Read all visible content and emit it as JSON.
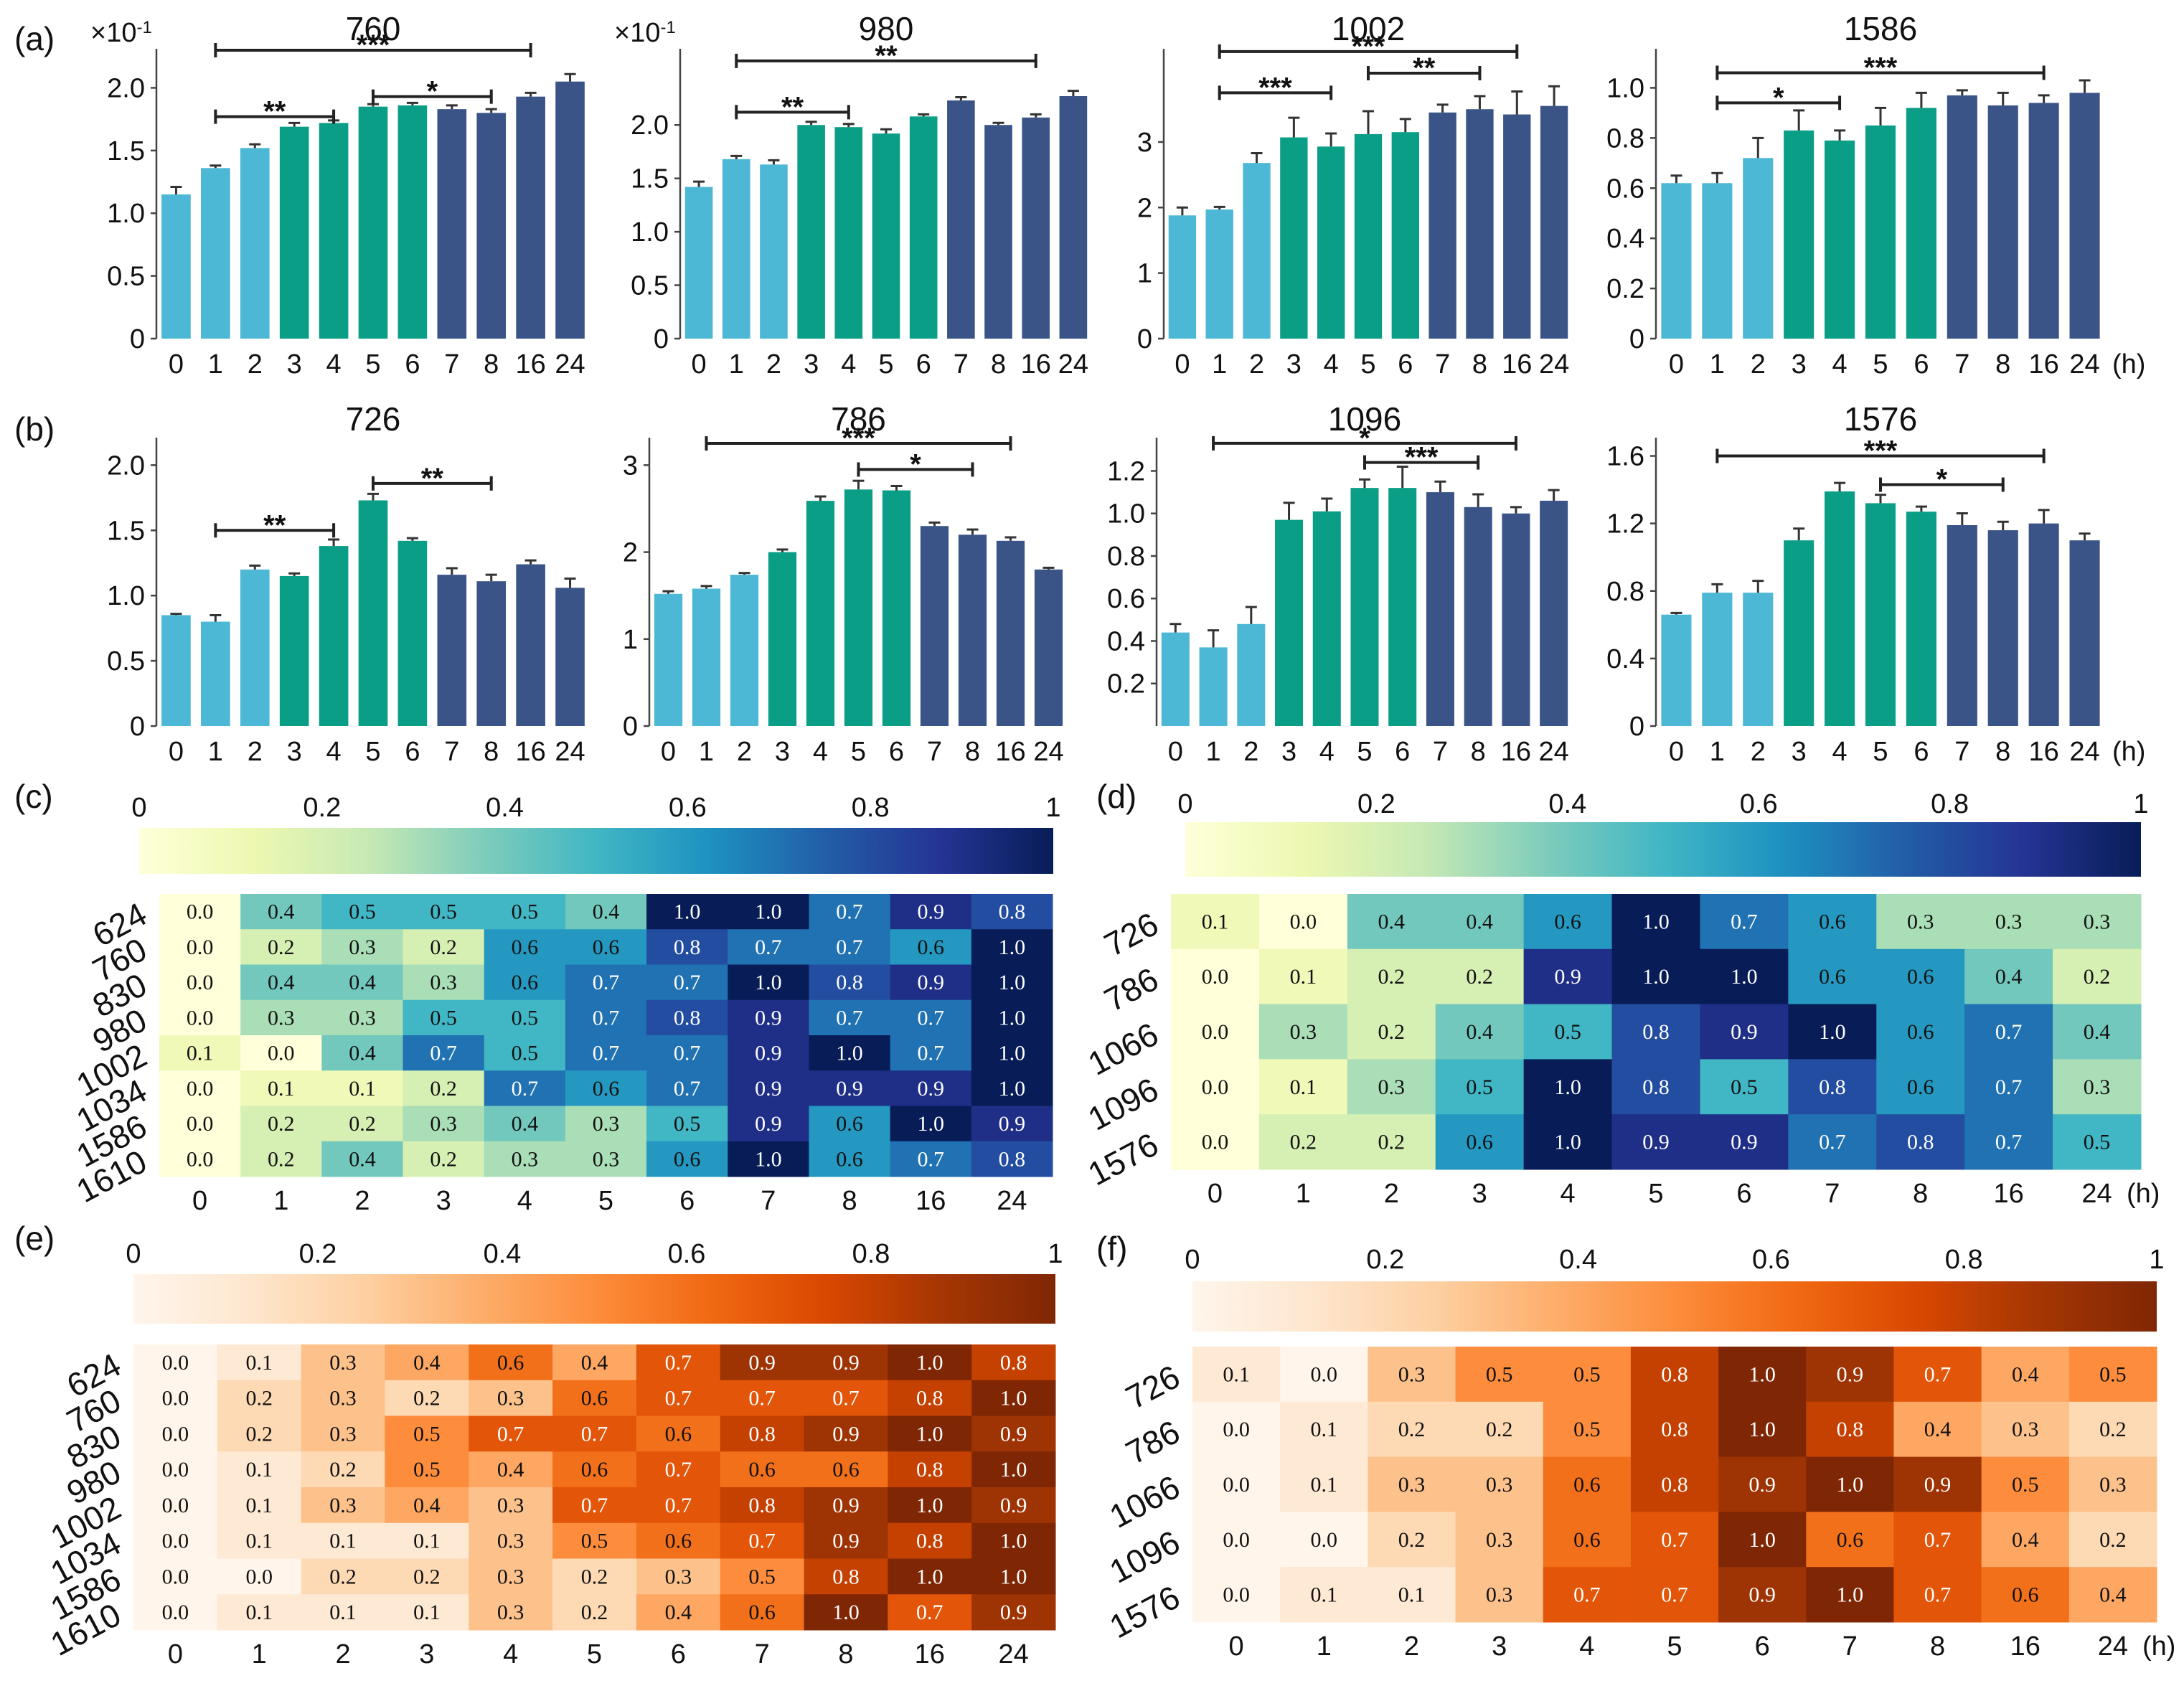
{
  "figure": {
    "time_labels": [
      "0",
      "1",
      "2",
      "3",
      "4",
      "5",
      "6",
      "7",
      "8",
      "16",
      "24"
    ],
    "hour_unit": "(h)",
    "colors": {
      "early": "#4DB8D6",
      "mid": "#0B9E86",
      "late": "#3B5488"
    }
  },
  "chart_data": [
    {
      "id": "a1",
      "panel": "(a)",
      "type": "bar",
      "title": "760",
      "multiplier": "×10-1",
      "categories": [
        "0",
        "1",
        "2",
        "3",
        "4",
        "5",
        "6",
        "7",
        "8",
        "16",
        "24"
      ],
      "values": [
        1.15,
        1.36,
        1.52,
        1.69,
        1.72,
        1.85,
        1.86,
        1.83,
        1.8,
        1.93,
        2.05
      ],
      "errors": [
        0.06,
        0.02,
        0.03,
        0.03,
        0.02,
        0.02,
        0.02,
        0.03,
        0.03,
        0.03,
        0.06
      ],
      "ylim": [
        0,
        2.3
      ],
      "yticks": [
        "0",
        "0.5",
        "1.0",
        "1.5",
        "2.0"
      ],
      "ytick_values": [
        0,
        0.5,
        1.0,
        1.5,
        2.0
      ],
      "show_hour": false,
      "significance": [
        {
          "from": 1,
          "to": 9,
          "label": "***",
          "level": 2.3
        },
        {
          "from": 1,
          "to": 4,
          "label": "**",
          "level": 1.77
        },
        {
          "from": 5,
          "to": 8,
          "label": "*",
          "level": 1.93
        }
      ]
    },
    {
      "id": "a2",
      "panel": "",
      "type": "bar",
      "title": "980",
      "multiplier": "×10-1",
      "categories": [
        "0",
        "1",
        "2",
        "3",
        "4",
        "5",
        "6",
        "7",
        "8",
        "16",
        "24"
      ],
      "values": [
        1.42,
        1.68,
        1.63,
        2.0,
        1.98,
        1.92,
        2.08,
        2.23,
        2.0,
        2.07,
        2.27
      ],
      "errors": [
        0.05,
        0.03,
        0.04,
        0.03,
        0.03,
        0.04,
        0.02,
        0.03,
        0.02,
        0.03,
        0.05
      ],
      "ylim": [
        0,
        2.7
      ],
      "yticks": [
        "0",
        "0.5",
        "1.0",
        "1.5",
        "2.0"
      ],
      "ytick_values": [
        0,
        0.5,
        1.0,
        1.5,
        2.0
      ],
      "show_hour": false,
      "significance": [
        {
          "from": 1,
          "to": 9,
          "label": "**",
          "level": 2.6
        },
        {
          "from": 1,
          "to": 4,
          "label": "**",
          "level": 2.12
        }
      ]
    },
    {
      "id": "a3",
      "panel": "",
      "type": "bar",
      "title": "1002",
      "multiplier": "",
      "categories": [
        "0",
        "1",
        "2",
        "3",
        "4",
        "5",
        "6",
        "7",
        "8",
        "16",
        "24"
      ],
      "values": [
        1.88,
        1.97,
        2.68,
        3.07,
        2.93,
        3.12,
        3.15,
        3.45,
        3.5,
        3.42,
        3.55
      ],
      "errors": [
        0.12,
        0.04,
        0.15,
        0.3,
        0.2,
        0.35,
        0.2,
        0.12,
        0.2,
        0.35,
        0.3
      ],
      "ylim": [
        0,
        4.4
      ],
      "yticks": [
        "0",
        "1",
        "2",
        "3"
      ],
      "ytick_values": [
        0,
        1,
        2,
        3
      ],
      "show_hour": false,
      "significance": [
        {
          "from": 1,
          "to": 9,
          "label": "***",
          "level": 4.38
        },
        {
          "from": 1,
          "to": 4,
          "label": "***",
          "level": 3.75
        },
        {
          "from": 5,
          "to": 8,
          "label": "**",
          "level": 4.05
        }
      ]
    },
    {
      "id": "a4",
      "panel": "",
      "type": "bar",
      "title": "1586",
      "multiplier": "",
      "categories": [
        "0",
        "1",
        "2",
        "3",
        "4",
        "5",
        "6",
        "7",
        "8",
        "16",
        "24"
      ],
      "values": [
        0.62,
        0.62,
        0.72,
        0.83,
        0.79,
        0.85,
        0.92,
        0.97,
        0.93,
        0.94,
        0.98
      ],
      "errors": [
        0.03,
        0.04,
        0.08,
        0.08,
        0.04,
        0.07,
        0.06,
        0.02,
        0.05,
        0.03,
        0.05
      ],
      "ylim": [
        0,
        1.15
      ],
      "yticks": [
        "0",
        "0.2",
        "0.4",
        "0.6",
        "0.8",
        "1.0"
      ],
      "ytick_values": [
        0,
        0.2,
        0.4,
        0.6,
        0.8,
        1.0
      ],
      "show_hour": true,
      "significance": [
        {
          "from": 1,
          "to": 9,
          "label": "***",
          "level": 1.06
        },
        {
          "from": 1,
          "to": 4,
          "label": "*",
          "level": 0.94
        }
      ]
    },
    {
      "id": "b1",
      "panel": "(b)",
      "type": "bar",
      "title": "726",
      "multiplier": "",
      "categories": [
        "0",
        "1",
        "2",
        "3",
        "4",
        "5",
        "6",
        "7",
        "8",
        "16",
        "24"
      ],
      "values": [
        0.85,
        0.8,
        1.2,
        1.15,
        1.38,
        1.73,
        1.42,
        1.16,
        1.11,
        1.24,
        1.06
      ],
      "errors": [
        0.01,
        0.05,
        0.03,
        0.02,
        0.05,
        0.05,
        0.02,
        0.05,
        0.05,
        0.03,
        0.07
      ],
      "ylim": [
        0,
        2.2
      ],
      "yticks": [
        "0",
        "0.5",
        "1.0",
        "1.5",
        "2.0"
      ],
      "ytick_values": [
        0,
        0.5,
        1.0,
        1.5,
        2.0
      ],
      "show_hour": false,
      "significance": [
        {
          "from": 1,
          "to": 4,
          "label": "**",
          "level": 1.5
        },
        {
          "from": 5,
          "to": 8,
          "label": "**",
          "level": 1.86
        }
      ]
    },
    {
      "id": "b2",
      "panel": "",
      "type": "bar",
      "title": "786",
      "multiplier": "",
      "categories": [
        "0",
        "1",
        "2",
        "3",
        "4",
        "5",
        "6",
        "7",
        "8",
        "16",
        "24"
      ],
      "values": [
        1.52,
        1.58,
        1.74,
        2.0,
        2.59,
        2.72,
        2.71,
        2.3,
        2.2,
        2.13,
        1.8
      ],
      "errors": [
        0.03,
        0.03,
        0.02,
        0.03,
        0.05,
        0.1,
        0.05,
        0.04,
        0.06,
        0.04,
        0.02
      ],
      "ylim": [
        0,
        3.3
      ],
      "yticks": [
        "0",
        "1",
        "2",
        "3"
      ],
      "ytick_values": [
        0,
        1,
        2,
        3
      ],
      "show_hour": false,
      "significance": [
        {
          "from": 1,
          "to": 9,
          "label": "***",
          "level": 3.25
        },
        {
          "from": 5,
          "to": 8,
          "label": "*",
          "level": 2.95
        }
      ]
    },
    {
      "id": "b3",
      "panel": "",
      "type": "bar",
      "title": "1096",
      "multiplier": "",
      "categories": [
        "0",
        "1",
        "2",
        "3",
        "4",
        "5",
        "6",
        "7",
        "8",
        "16",
        "24"
      ],
      "values": [
        0.44,
        0.37,
        0.48,
        0.97,
        1.01,
        1.12,
        1.12,
        1.1,
        1.03,
        1.0,
        1.06
      ],
      "errors": [
        0.04,
        0.08,
        0.08,
        0.08,
        0.06,
        0.04,
        0.1,
        0.05,
        0.06,
        0.03,
        0.05
      ],
      "ylim": [
        0,
        1.35
      ],
      "yticks": [
        "0.2",
        "0.4",
        "0.6",
        "0.8",
        "1.0",
        "1.2"
      ],
      "ytick_values": [
        0.2,
        0.4,
        0.6,
        0.8,
        1.0,
        1.2
      ],
      "show_hour": false,
      "significance": [
        {
          "from": 1,
          "to": 9,
          "label": "*",
          "level": 1.33
        },
        {
          "from": 5,
          "to": 8,
          "label": "***",
          "level": 1.24
        }
      ]
    },
    {
      "id": "b4",
      "panel": "",
      "type": "bar",
      "title": "1576",
      "multiplier": "",
      "categories": [
        "0",
        "1",
        "2",
        "3",
        "4",
        "5",
        "6",
        "7",
        "8",
        "16",
        "24"
      ],
      "values": [
        0.66,
        0.79,
        0.79,
        1.1,
        1.39,
        1.32,
        1.27,
        1.19,
        1.16,
        1.2,
        1.1
      ],
      "errors": [
        0.01,
        0.05,
        0.07,
        0.07,
        0.05,
        0.05,
        0.03,
        0.07,
        0.05,
        0.08,
        0.04
      ],
      "ylim": [
        0,
        1.7
      ],
      "yticks": [
        "0",
        "0.4",
        "0.8",
        "1.2",
        "1.6"
      ],
      "ytick_values": [
        0,
        0.4,
        0.8,
        1.2,
        1.6
      ],
      "show_hour": true,
      "significance": [
        {
          "from": 1,
          "to": 9,
          "label": "***",
          "level": 1.6
        },
        {
          "from": 5,
          "to": 8,
          "label": "*",
          "level": 1.43
        }
      ]
    },
    {
      "id": "c",
      "panel": "(c)",
      "type": "heatmap",
      "colormap": "blue",
      "colorbar_ticks": [
        "0",
        "0.2",
        "0.4",
        "0.6",
        "0.8",
        "1"
      ],
      "columns": [
        "0",
        "1",
        "2",
        "3",
        "4",
        "5",
        "6",
        "7",
        "8",
        "16",
        "24"
      ],
      "rows": [
        "624",
        "760",
        "830",
        "980",
        "1002",
        "1034",
        "1586",
        "1610"
      ],
      "show_hour": false,
      "values": [
        [
          0.0,
          0.4,
          0.5,
          0.5,
          0.5,
          0.4,
          1.0,
          1.0,
          0.7,
          0.9,
          0.8
        ],
        [
          0.0,
          0.2,
          0.3,
          0.2,
          0.6,
          0.6,
          0.8,
          0.7,
          0.7,
          0.6,
          1.0
        ],
        [
          0.0,
          0.4,
          0.4,
          0.3,
          0.6,
          0.7,
          0.7,
          1.0,
          0.8,
          0.9,
          1.0
        ],
        [
          0.0,
          0.3,
          0.3,
          0.5,
          0.5,
          0.7,
          0.8,
          0.9,
          0.7,
          0.7,
          1.0
        ],
        [
          0.1,
          0.0,
          0.4,
          0.7,
          0.5,
          0.7,
          0.7,
          0.9,
          1.0,
          0.7,
          1.0
        ],
        [
          0.0,
          0.1,
          0.1,
          0.2,
          0.7,
          0.6,
          0.7,
          0.9,
          0.9,
          0.9,
          1.0
        ],
        [
          0.0,
          0.2,
          0.2,
          0.3,
          0.4,
          0.3,
          0.5,
          0.9,
          0.6,
          1.0,
          0.9
        ],
        [
          0.0,
          0.2,
          0.4,
          0.2,
          0.3,
          0.3,
          0.6,
          1.0,
          0.6,
          0.7,
          0.8
        ]
      ]
    },
    {
      "id": "d",
      "panel": "(d)",
      "type": "heatmap",
      "colormap": "blue",
      "colorbar_ticks": [
        "0",
        "0.2",
        "0.4",
        "0.6",
        "0.8",
        "1"
      ],
      "columns": [
        "0",
        "1",
        "2",
        "3",
        "4",
        "5",
        "6",
        "7",
        "8",
        "16",
        "24"
      ],
      "rows": [
        "726",
        "786",
        "1066",
        "1096",
        "1576"
      ],
      "show_hour": true,
      "values": [
        [
          0.1,
          0.0,
          0.4,
          0.4,
          0.6,
          1.0,
          0.7,
          0.6,
          0.3,
          0.3,
          0.3
        ],
        [
          0.0,
          0.1,
          0.2,
          0.2,
          0.9,
          1.0,
          1.0,
          0.6,
          0.6,
          0.4,
          0.2
        ],
        [
          0.0,
          0.3,
          0.2,
          0.4,
          0.5,
          0.8,
          0.9,
          1.0,
          0.6,
          0.7,
          0.4
        ],
        [
          0.0,
          0.1,
          0.3,
          0.5,
          1.0,
          0.8,
          0.5,
          0.8,
          0.6,
          0.7,
          0.3
        ],
        [
          0.0,
          0.2,
          0.2,
          0.6,
          1.0,
          0.9,
          0.9,
          0.7,
          0.8,
          0.7,
          0.5
        ]
      ]
    },
    {
      "id": "e",
      "panel": "(e)",
      "type": "heatmap",
      "colormap": "orange",
      "colorbar_ticks": [
        "0",
        "0.2",
        "0.4",
        "0.6",
        "0.8",
        "1"
      ],
      "columns": [
        "0",
        "1",
        "2",
        "3",
        "4",
        "5",
        "6",
        "7",
        "8",
        "16",
        "24"
      ],
      "rows": [
        "624",
        "760",
        "830",
        "980",
        "1002",
        "1034",
        "1586",
        "1610"
      ],
      "show_hour": false,
      "values": [
        [
          0.0,
          0.1,
          0.3,
          0.4,
          0.6,
          0.4,
          0.7,
          0.9,
          0.9,
          1.0,
          0.8
        ],
        [
          0.0,
          0.2,
          0.3,
          0.2,
          0.3,
          0.6,
          0.7,
          0.7,
          0.7,
          0.8,
          1.0
        ],
        [
          0.0,
          0.2,
          0.3,
          0.5,
          0.7,
          0.7,
          0.6,
          0.8,
          0.9,
          1.0,
          0.9
        ],
        [
          0.0,
          0.1,
          0.2,
          0.5,
          0.4,
          0.6,
          0.7,
          0.6,
          0.6,
          0.8,
          1.0
        ],
        [
          0.0,
          0.1,
          0.3,
          0.4,
          0.3,
          0.7,
          0.7,
          0.8,
          0.9,
          1.0,
          0.9
        ],
        [
          0.0,
          0.1,
          0.1,
          0.1,
          0.3,
          0.5,
          0.6,
          0.7,
          0.9,
          0.8,
          1.0
        ],
        [
          0.0,
          0.0,
          0.2,
          0.2,
          0.3,
          0.2,
          0.3,
          0.5,
          0.8,
          1.0,
          1.0
        ],
        [
          0.0,
          0.1,
          0.1,
          0.1,
          0.3,
          0.2,
          0.4,
          0.6,
          1.0,
          0.7,
          0.9
        ]
      ]
    },
    {
      "id": "f",
      "panel": "(f)",
      "type": "heatmap",
      "colormap": "orange",
      "colorbar_ticks": [
        "0",
        "0.2",
        "0.4",
        "0.6",
        "0.8",
        "1"
      ],
      "columns": [
        "0",
        "1",
        "2",
        "3",
        "4",
        "5",
        "6",
        "7",
        "8",
        "16",
        "24"
      ],
      "rows": [
        "726",
        "786",
        "1066",
        "1096",
        "1576"
      ],
      "show_hour": true,
      "values": [
        [
          0.1,
          0.0,
          0.3,
          0.5,
          0.5,
          0.8,
          1.0,
          0.9,
          0.7,
          0.4,
          0.5
        ],
        [
          0.0,
          0.1,
          0.2,
          0.2,
          0.5,
          0.8,
          1.0,
          0.8,
          0.4,
          0.3,
          0.2
        ],
        [
          0.0,
          0.1,
          0.3,
          0.3,
          0.6,
          0.8,
          0.9,
          1.0,
          0.9,
          0.5,
          0.3
        ],
        [
          0.0,
          0.0,
          0.2,
          0.3,
          0.6,
          0.7,
          1.0,
          0.6,
          0.7,
          0.4,
          0.2
        ],
        [
          0.0,
          0.1,
          0.1,
          0.3,
          0.7,
          0.7,
          0.9,
          1.0,
          0.7,
          0.6,
          0.4
        ]
      ]
    }
  ]
}
